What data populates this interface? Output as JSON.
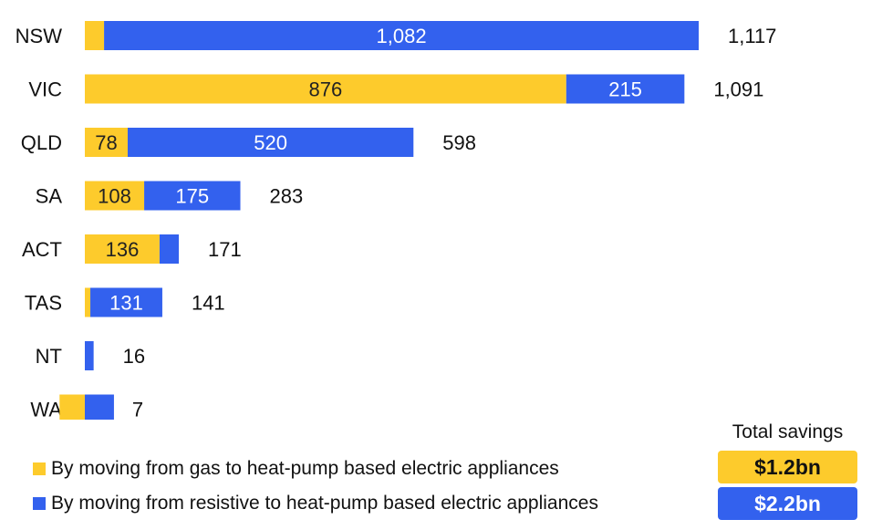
{
  "chart_data": {
    "type": "bar",
    "orientation": "horizontal",
    "stacked": true,
    "categories": [
      "NSW",
      "VIC",
      "QLD",
      "SA",
      "ACT",
      "TAS",
      "NT",
      "WA"
    ],
    "series": [
      {
        "name": "By moving from gas to heat-pump based electric appliances",
        "color": "#FDCB2C",
        "values": [
          35,
          876,
          78,
          108,
          136,
          10,
          0,
          -46
        ],
        "labels": [
          "",
          "876",
          "78",
          "108",
          "136",
          "",
          "",
          ""
        ]
      },
      {
        "name": "By moving from resistive to heat-pump based electric appliances",
        "color": "#3361EE",
        "values": [
          1082,
          215,
          520,
          175,
          35,
          131,
          16,
          53
        ],
        "labels": [
          "1,082",
          "215",
          "520",
          "175",
          "",
          "131",
          "",
          ""
        ]
      }
    ],
    "totals": [
      "1,117",
      "1,091",
      "598",
      "283",
      "171",
      "141",
      "16",
      "7"
    ],
    "xlim": [
      -60,
      1117
    ],
    "grid": false,
    "legend_position": "bottom-left"
  },
  "summary": {
    "title": "Total savings",
    "gas_total": "$1.2bn",
    "resistive_total": "$2.2bn"
  }
}
